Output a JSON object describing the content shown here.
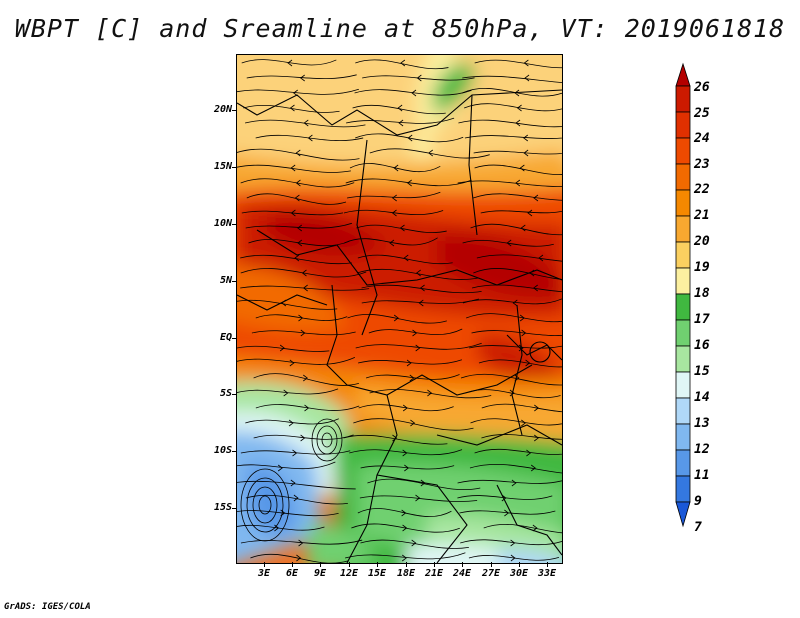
{
  "title": "WBPT [C] and Sreamline at 850hPa, VT: 2019061818",
  "footer": "GrADS: IGES/COLA",
  "lat_labels": [
    "20N",
    "15N",
    "10N",
    "5N",
    "EQ",
    "5S",
    "10S",
    "15S"
  ],
  "lon_labels": [
    "3E",
    "6E",
    "9E",
    "12E",
    "15E",
    "18E",
    "21E",
    "24E",
    "27E",
    "30E",
    "33E"
  ],
  "colorbar": {
    "labels": [
      "26",
      "25",
      "24",
      "23",
      "22",
      "21",
      "20",
      "19",
      "18",
      "17",
      "16",
      "15",
      "14",
      "13",
      "12",
      "11",
      "9",
      "7"
    ],
    "colors": [
      "#b40000",
      "#cc1a00",
      "#e03000",
      "#ee4a00",
      "#f26a00",
      "#f58800",
      "#f8a830",
      "#fbd060",
      "#fcf0a0",
      "#40b840",
      "#70d070",
      "#a8e6a0",
      "#e0f6f6",
      "#b0d8f8",
      "#80b8f0",
      "#5898e8",
      "#3478e0",
      "#1a58d8"
    ]
  },
  "icons": {
    "map": "wbpt-streamline-map"
  }
}
